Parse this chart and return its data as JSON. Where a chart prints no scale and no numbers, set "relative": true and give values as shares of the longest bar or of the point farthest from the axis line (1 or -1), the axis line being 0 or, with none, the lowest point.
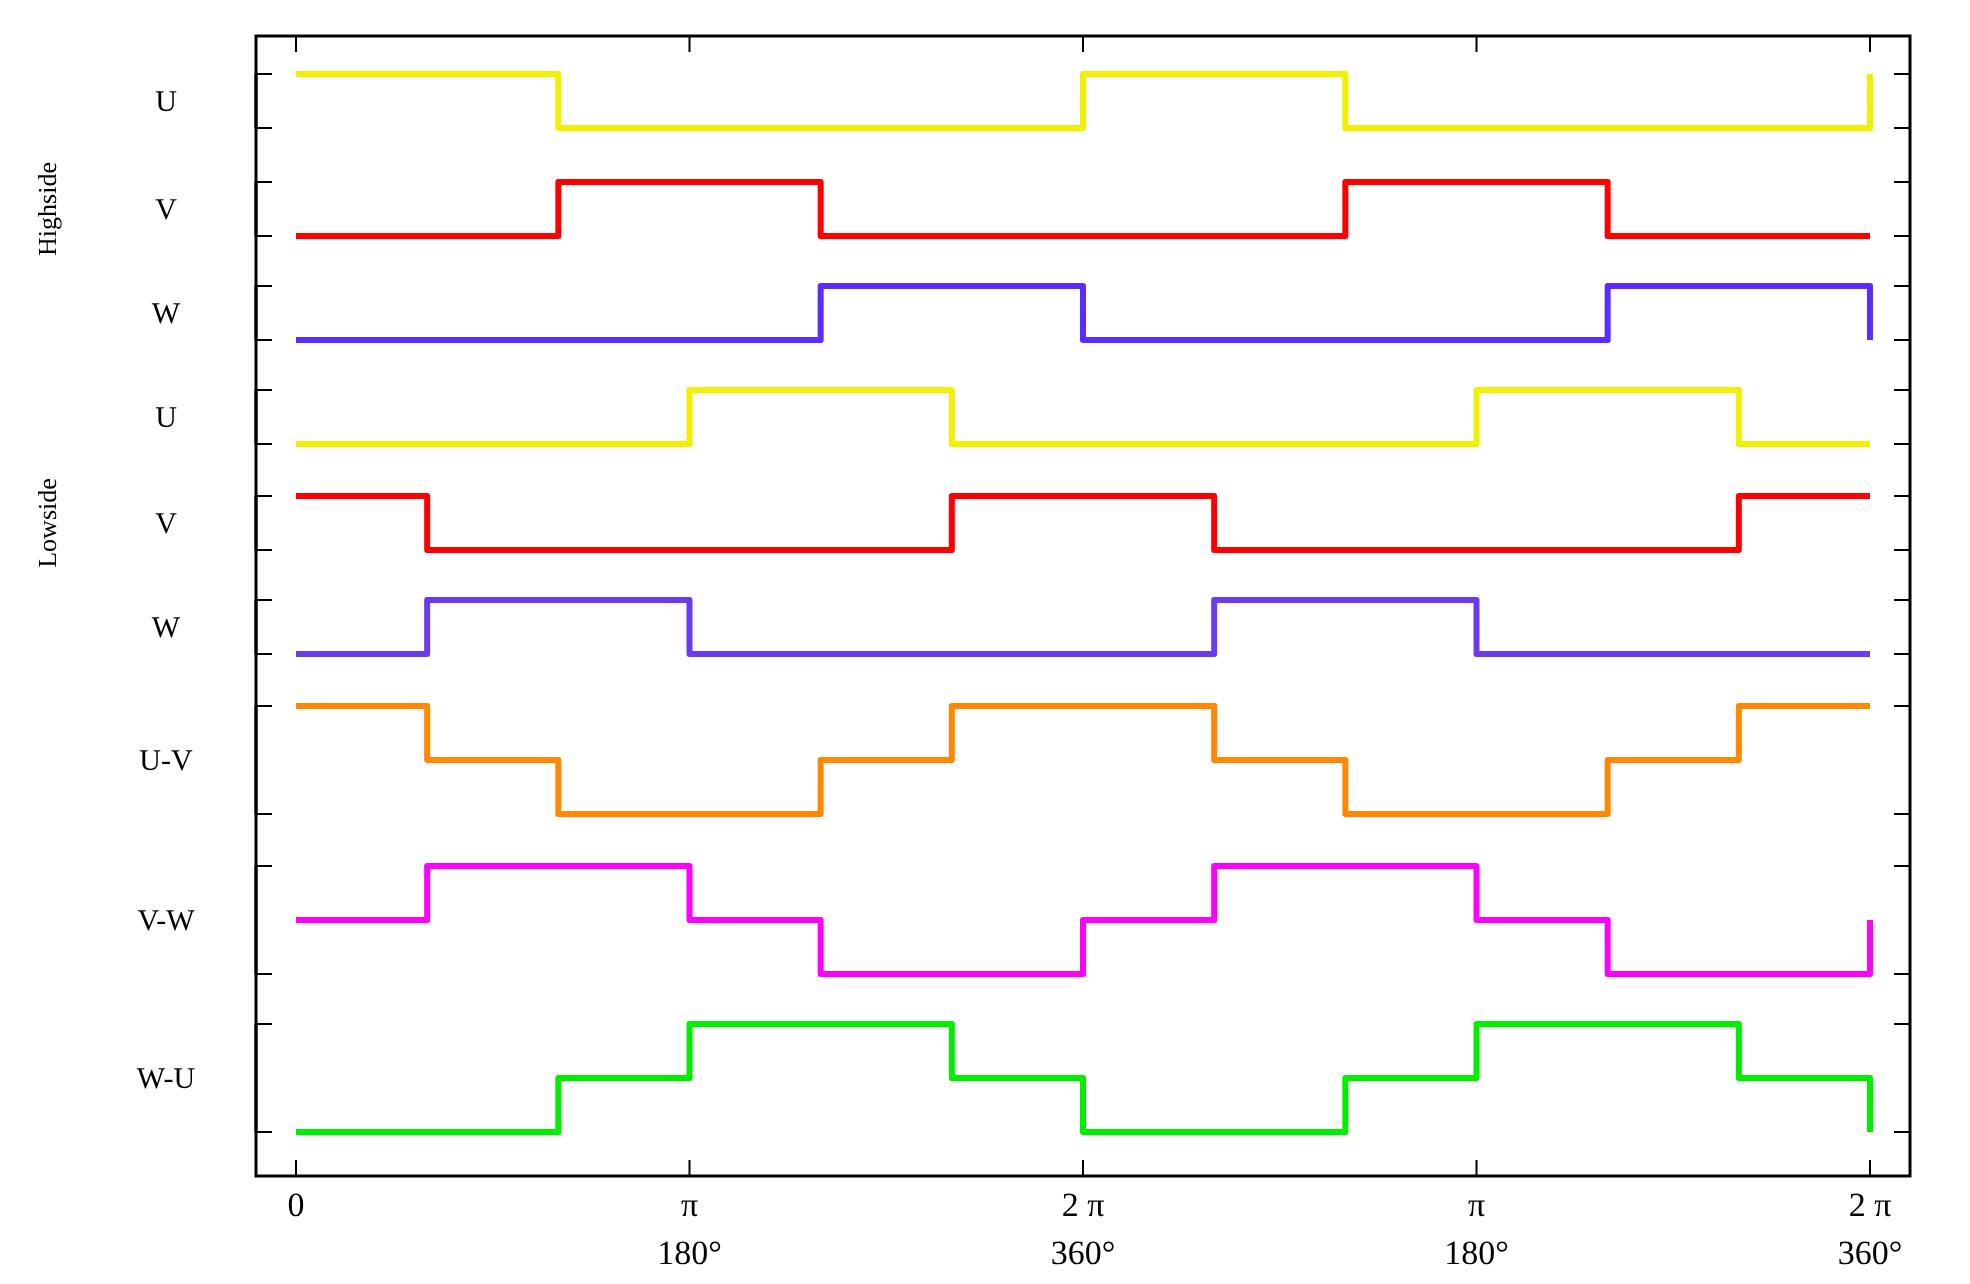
{
  "chart_data": [
    {
      "type": "step",
      "ylabel": "U",
      "relative": true,
      "tick_labels": false,
      "series": [
        {
          "color": "#f0f000",
          "values": [
            1,
            1,
            0,
            0,
            0,
            0,
            1,
            1,
            0,
            0,
            0,
            0,
            1
          ]
        }
      ]
    },
    {
      "type": "step",
      "ylabel": "V",
      "relative": true,
      "tick_labels": false,
      "annotations": [
        "Highside"
      ],
      "series": [
        {
          "color": "#ff0000",
          "values": [
            0,
            0,
            1,
            1,
            0,
            0,
            0,
            0,
            1,
            1,
            0,
            0,
            0
          ]
        }
      ]
    },
    {
      "type": "step",
      "ylabel": "W",
      "relative": true,
      "tick_labels": false,
      "series": [
        {
          "color": "#5a2cff",
          "values": [
            0,
            0,
            0,
            0,
            1,
            1,
            0,
            0,
            0,
            0,
            1,
            1,
            0
          ]
        }
      ]
    },
    {
      "type": "step",
      "ylabel": "U",
      "relative": true,
      "tick_labels": false,
      "series": [
        {
          "color": "#f0f000",
          "values": [
            0,
            0,
            0,
            1,
            1,
            0,
            0,
            0,
            0,
            1,
            1,
            0,
            0
          ]
        }
      ]
    },
    {
      "type": "step",
      "ylabel": "V",
      "relative": true,
      "tick_labels": false,
      "annotations": [
        "Lowside"
      ],
      "series": [
        {
          "color": "#ff0000",
          "values": [
            1,
            0,
            0,
            0,
            0,
            1,
            1,
            0,
            0,
            0,
            0,
            1,
            1
          ]
        }
      ]
    },
    {
      "type": "step",
      "ylabel": "W",
      "relative": true,
      "tick_labels": false,
      "series": [
        {
          "color": "#6a3cf0",
          "values": [
            0,
            1,
            1,
            0,
            0,
            0,
            0,
            1,
            1,
            0,
            0,
            0,
            0
          ]
        }
      ]
    },
    {
      "type": "step",
      "ylabel": "U-V",
      "relative": true,
      "tick_labels": false,
      "series": [
        {
          "color": "#ff8800",
          "values": [
            1,
            0.5,
            0,
            0,
            0.5,
            1,
            1,
            0.5,
            0,
            0,
            0.5,
            1,
            1
          ]
        }
      ]
    },
    {
      "type": "step",
      "ylabel": "V-W",
      "relative": true,
      "tick_labels": false,
      "series": [
        {
          "color": "#ff00ff",
          "values": [
            0.5,
            1,
            1,
            0.5,
            0,
            0,
            0.5,
            1,
            1,
            0.5,
            0,
            0,
            0.5
          ]
        }
      ]
    },
    {
      "type": "step",
      "ylabel": "W-U",
      "relative": true,
      "tick_labels": "x",
      "categories": [
        "0",
        null,
        null,
        "π\n180°",
        null,
        null,
        "2 π\n360°",
        null,
        null,
        "π\n180°",
        null,
        null,
        "2 π\n360°"
      ],
      "series": [
        {
          "color": "#00ee00",
          "values": [
            0,
            0,
            0.5,
            1,
            1,
            0.5,
            0,
            0,
            0.5,
            1,
            1,
            0.5,
            0
          ]
        }
      ]
    }
  ]
}
